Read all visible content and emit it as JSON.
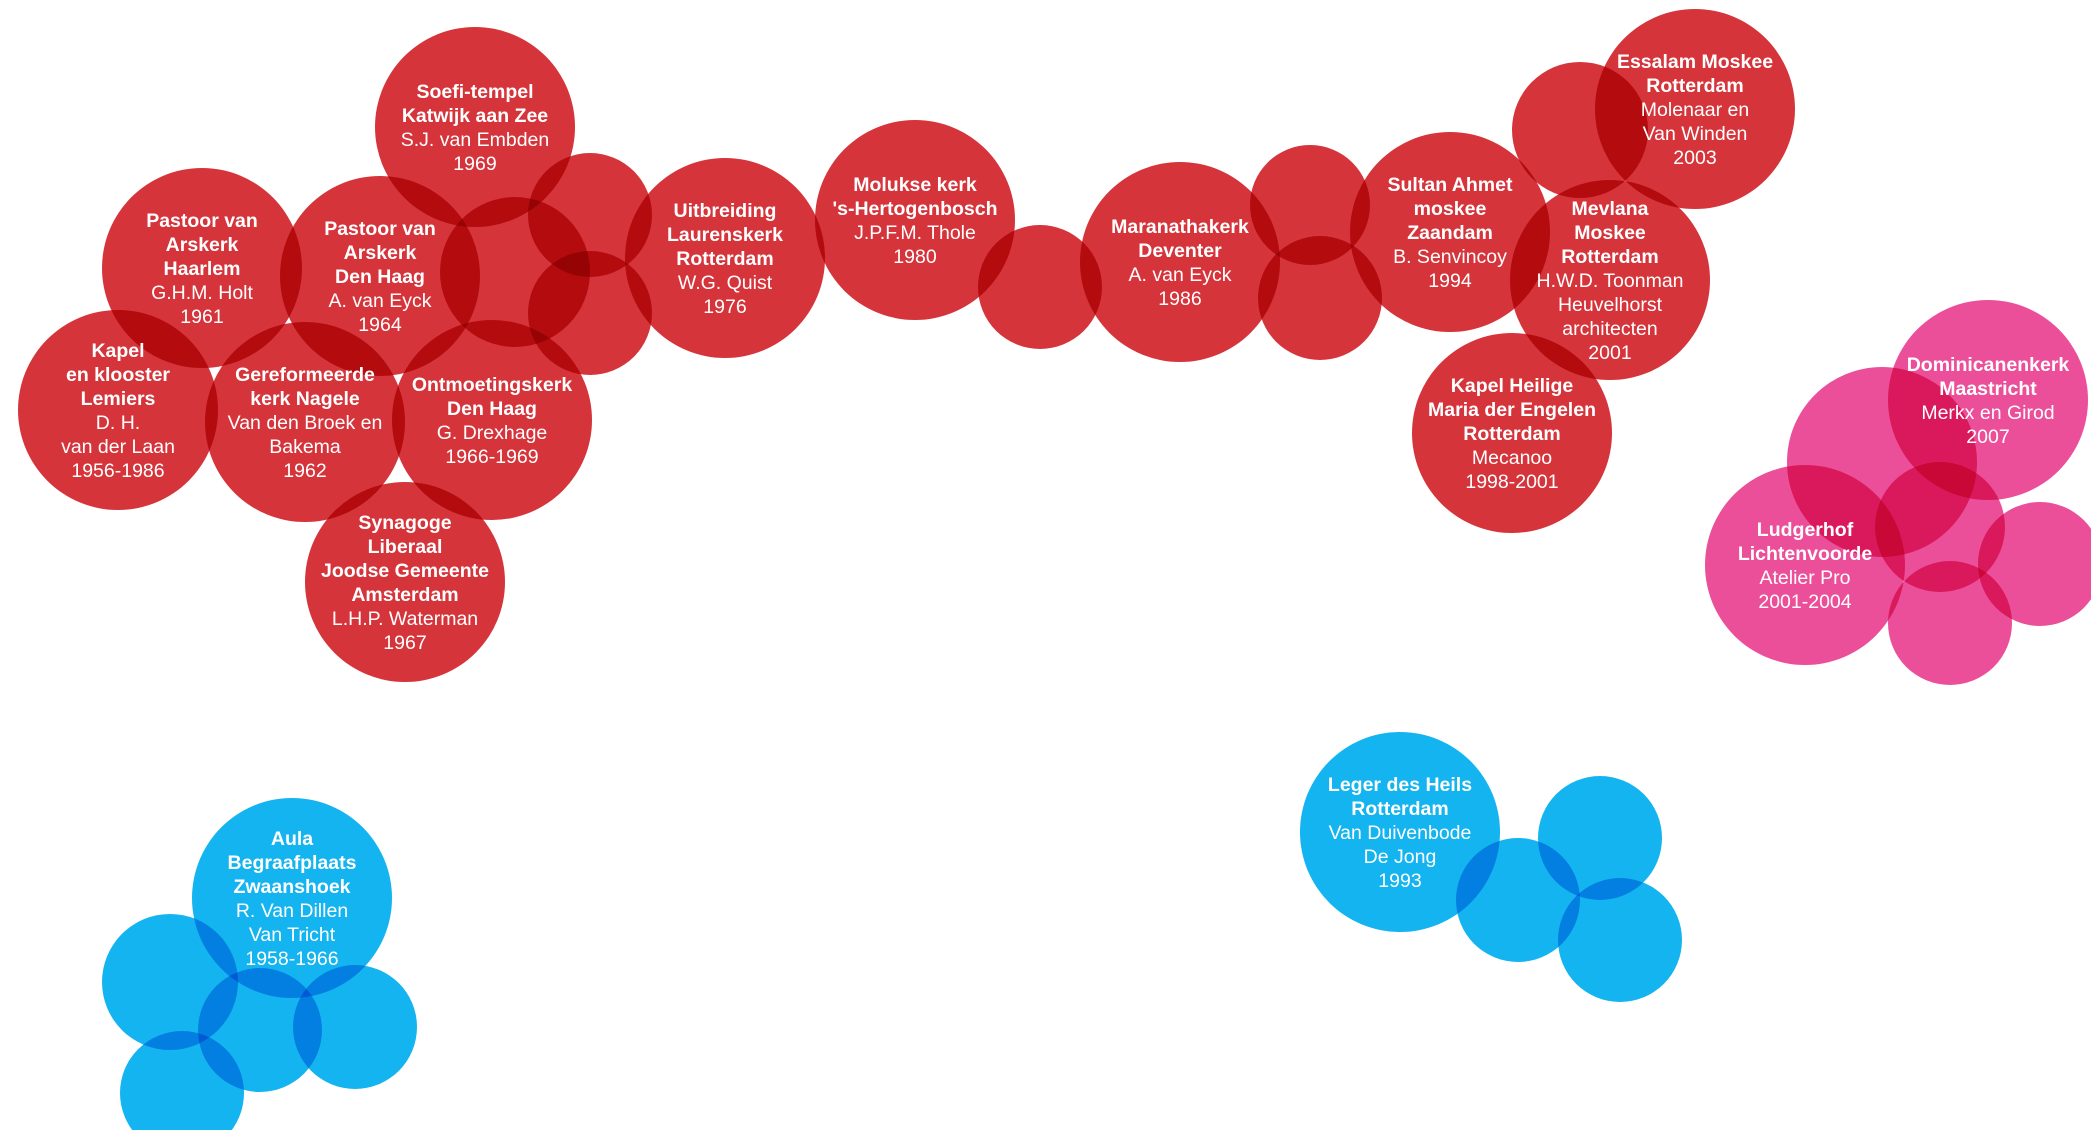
{
  "colors": {
    "red": "#d2232a",
    "pink": "#ea4090",
    "blue": "#00aeef"
  },
  "clusters": [
    {
      "id": "red-cluster",
      "color": "red",
      "buildings": [
        {
          "id": "soefi-tempel",
          "name": [
            "Soefi-tempel",
            "Katwijk aan Zee"
          ],
          "details": [
            "S.J. van Embden",
            "1969"
          ]
        },
        {
          "id": "pastoor-van-arskerk-haarlem",
          "name": [
            "Pastoor van",
            "Arskerk",
            "Haarlem"
          ],
          "details": [
            "G.H.M. Holt",
            "1961"
          ]
        },
        {
          "id": "pastoor-van-arskerk-den-haag",
          "name": [
            "Pastoor van",
            "Arskerk",
            "Den Haag"
          ],
          "details": [
            "A. van Eyck",
            "1964"
          ]
        },
        {
          "id": "kapel-en-klooster-lemiers",
          "name": [
            "Kapel",
            "en klooster",
            "Lemiers"
          ],
          "details": [
            "D. H.",
            "van der Laan",
            "1956-1986"
          ]
        },
        {
          "id": "gereformeerde-kerk-nagele",
          "name": [
            "Gereformeerde",
            "kerk Nagele"
          ],
          "details": [
            "Van den Broek en",
            "Bakema",
            "1962"
          ]
        },
        {
          "id": "ontmoetingskerk-den-haag",
          "name": [
            "Ontmoetingskerk",
            "Den Haag"
          ],
          "details": [
            "G. Drexhage",
            "1966-1969"
          ]
        },
        {
          "id": "synagoge-liberaal",
          "name": [
            "Synagoge",
            "Liberaal",
            "Joodse Gemeente",
            "Amsterdam"
          ],
          "details": [
            "L.H.P. Waterman",
            "1967"
          ]
        },
        {
          "id": "uitbreiding-laurenskerk",
          "name": [
            "Uitbreiding",
            "Laurenskerk",
            "Rotterdam"
          ],
          "details": [
            "W.G. Quist",
            "1976"
          ]
        },
        {
          "id": "molukse-kerk",
          "name": [
            "Molukse kerk",
            "'s-Hertogenbosch"
          ],
          "details": [
            "J.P.F.M. Thole",
            "1980"
          ]
        },
        {
          "id": "maranathakerk-deventer",
          "name": [
            "Maranathakerk",
            "Deventer"
          ],
          "details": [
            "A. van Eyck",
            "1986"
          ]
        },
        {
          "id": "sultan-ahmet-moskee",
          "name": [
            "Sultan Ahmet",
            "moskee",
            "Zaandam"
          ],
          "details": [
            "B. Senvincoy",
            "1994"
          ]
        },
        {
          "id": "essalam-moskee",
          "name": [
            "Essalam Moskee",
            "Rotterdam"
          ],
          "details": [
            "Molenaar en",
            "Van Winden",
            "2003"
          ]
        },
        {
          "id": "mevlana-moskee",
          "name": [
            "Mevlana",
            "Moskee",
            "Rotterdam"
          ],
          "details": [
            "H.W.D. Toonman",
            "Heuvelhorst",
            "architecten",
            "2001"
          ]
        },
        {
          "id": "kapel-heilige-maria",
          "name": [
            "Kapel Heilige",
            "Maria der Engelen",
            "Rotterdam"
          ],
          "details": [
            "Mecanoo",
            "1998-2001"
          ]
        }
      ]
    },
    {
      "id": "pink-cluster",
      "color": "pink",
      "buildings": [
        {
          "id": "dominicanenkerk-maastricht",
          "name": [
            "Dominicanenkerk",
            "Maastricht"
          ],
          "details": [
            "Merkx en Girod",
            "2007"
          ]
        },
        {
          "id": "ludgerhof-lichtenvoorde",
          "name": [
            "Ludgerhof",
            "Lichtenvoorde"
          ],
          "details": [
            "Atelier Pro",
            "2001-2004"
          ]
        }
      ]
    },
    {
      "id": "blue-cluster",
      "color": "blue",
      "buildings": [
        {
          "id": "aula-begraafplaats-zwaanshoek",
          "name": [
            "Aula",
            "Begraafplaats",
            "Zwaanshoek"
          ],
          "details": [
            "R. Van Dillen",
            "Van Tricht",
            "1958-1966"
          ]
        },
        {
          "id": "leger-des-heils-rotterdam",
          "name": [
            "Leger des Heils",
            "Rotterdam"
          ],
          "details": [
            "Van Duivenbode",
            "De Jong",
            "1993"
          ]
        }
      ]
    }
  ]
}
